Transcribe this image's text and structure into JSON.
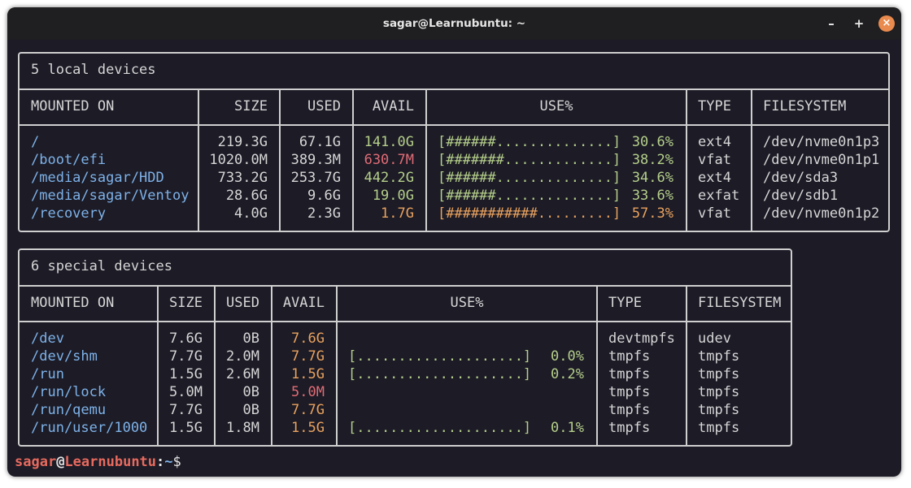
{
  "window": {
    "title": "sagar@Learnubuntu: ~",
    "minimize": "–",
    "maximize": "+",
    "close": "×"
  },
  "colors": {
    "mount": "#7eb2e8",
    "green": "#b5cf8a",
    "orange": "#e9a25f",
    "red": "#e06c75",
    "prompt_user": "#e86a5e",
    "prompt_path": "#7eb2e8"
  },
  "local": {
    "title": "5 local devices",
    "headers": {
      "mounted": "MOUNTED ON",
      "size": "SIZE",
      "used": "USED",
      "avail": "AVAIL",
      "use": "USE%",
      "type": "TYPE",
      "fs": "FILESYSTEM"
    },
    "rows": [
      {
        "mounted": "/",
        "size": "219.3G",
        "used": "67.1G",
        "avail": "141.0G",
        "avail_color": "green",
        "bar": "[######..............]",
        "pct": "30.6%",
        "bar_color": "green",
        "type": "ext4",
        "fs": "/dev/nvme0n1p3"
      },
      {
        "mounted": "/boot/efi",
        "size": "1020.0M",
        "used": "389.3M",
        "avail": "630.7M",
        "avail_color": "red",
        "bar": "[#######.............]",
        "pct": "38.2%",
        "bar_color": "green",
        "type": "vfat",
        "fs": "/dev/nvme0n1p1"
      },
      {
        "mounted": "/media/sagar/HDD",
        "size": "733.2G",
        "used": "253.7G",
        "avail": "442.2G",
        "avail_color": "green",
        "bar": "[######..............]",
        "pct": "34.6%",
        "bar_color": "green",
        "type": "ext4",
        "fs": "/dev/sda3"
      },
      {
        "mounted": "/media/sagar/Ventoy",
        "size": "28.6G",
        "used": "9.6G",
        "avail": "19.0G",
        "avail_color": "green",
        "bar": "[######..............]",
        "pct": "33.6%",
        "bar_color": "green",
        "type": "exfat",
        "fs": "/dev/sdb1"
      },
      {
        "mounted": "/recovery",
        "size": "4.0G",
        "used": "2.3G",
        "avail": "1.7G",
        "avail_color": "orange",
        "bar": "[###########.........]",
        "pct": "57.3%",
        "bar_color": "orange",
        "type": "vfat",
        "fs": "/dev/nvme0n1p2"
      }
    ]
  },
  "special": {
    "title": "6 special devices",
    "headers": {
      "mounted": "MOUNTED ON",
      "size": "SIZE",
      "used": "USED",
      "avail": "AVAIL",
      "use": "USE%",
      "type": "TYPE",
      "fs": "FILESYSTEM"
    },
    "rows": [
      {
        "mounted": "/dev",
        "size": "7.6G",
        "used": "0B",
        "avail": "7.6G",
        "avail_color": "orange",
        "bar": "",
        "pct": "",
        "bar_color": "green",
        "type": "devtmpfs",
        "fs": "udev"
      },
      {
        "mounted": "/dev/shm",
        "size": "7.7G",
        "used": "2.0M",
        "avail": "7.7G",
        "avail_color": "orange",
        "bar": "[....................]",
        "pct": "0.0%",
        "bar_color": "green",
        "type": "tmpfs",
        "fs": "tmpfs"
      },
      {
        "mounted": "/run",
        "size": "1.5G",
        "used": "2.6M",
        "avail": "1.5G",
        "avail_color": "orange",
        "bar": "[....................]",
        "pct": "0.2%",
        "bar_color": "green",
        "type": "tmpfs",
        "fs": "tmpfs"
      },
      {
        "mounted": "/run/lock",
        "size": "5.0M",
        "used": "0B",
        "avail": "5.0M",
        "avail_color": "red",
        "bar": "",
        "pct": "",
        "bar_color": "green",
        "type": "tmpfs",
        "fs": "tmpfs"
      },
      {
        "mounted": "/run/qemu",
        "size": "7.7G",
        "used": "0B",
        "avail": "7.7G",
        "avail_color": "orange",
        "bar": "",
        "pct": "",
        "bar_color": "green",
        "type": "tmpfs",
        "fs": "tmpfs"
      },
      {
        "mounted": "/run/user/1000",
        "size": "1.5G",
        "used": "1.8M",
        "avail": "1.5G",
        "avail_color": "orange",
        "bar": "[....................]",
        "pct": "0.1%",
        "bar_color": "green",
        "type": "tmpfs",
        "fs": "tmpfs"
      }
    ]
  },
  "prompt": {
    "user": "sagar",
    "at": "@",
    "host": "Learnubuntu",
    "colon": ":",
    "path": "~",
    "dollar": "$"
  }
}
